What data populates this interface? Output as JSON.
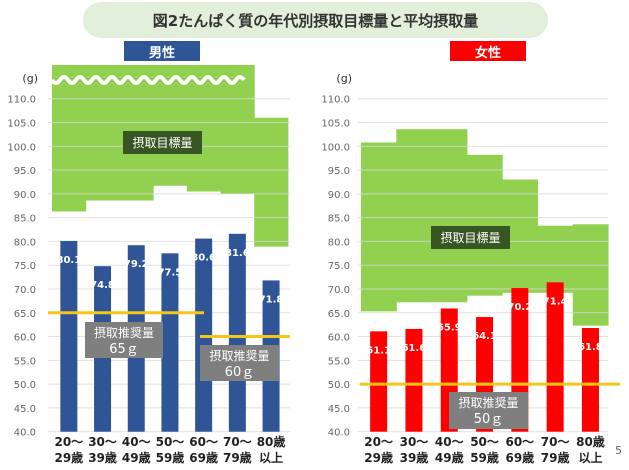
{
  "title": "図2たんぱく質の年代別摂取目標量と平均摂取量",
  "page_number": "5",
  "colors": {
    "male": "#2f5597",
    "female": "#ff0000",
    "target": "#92d050",
    "recommended": "#f5c518",
    "label_box": "#7f7f7f",
    "target_label_box": "#375623"
  },
  "chart_data": [
    {
      "type": "bar",
      "panel": "男性",
      "unit": "(g)",
      "categories": [
        "20〜\n29歳",
        "30〜\n39歳",
        "40〜\n49歳",
        "50〜\n59歳",
        "60〜\n69歳",
        "70〜\n79歳",
        "80歳\n以上"
      ],
      "values": [
        80.1,
        74.8,
        79.2,
        77.5,
        80.6,
        81.6,
        71.8
      ],
      "value_labels": [
        "80.1",
        "74.8",
        "79.2",
        "77.5",
        "80.6",
        "81.6",
        "71.8"
      ],
      "ylim": [
        40,
        110
      ],
      "yticks": [
        "40.0",
        "45.0",
        "50.0",
        "55.0",
        "60.0",
        "65.0",
        "70.0",
        "75.0",
        "80.0",
        "85.0",
        "90.0",
        "95.0",
        "100.0",
        "105.0",
        "110.0"
      ],
      "grid": true,
      "axis_break": true,
      "target_range": {
        "label": "摂取目標量",
        "lower": [
          86.3,
          88.6,
          88.6,
          91.7,
          90.5,
          90.0,
          78.9
        ],
        "upper": [
          null,
          null,
          null,
          null,
          null,
          null,
          106.0
        ]
      },
      "recommended": [
        {
          "label": "摂取推奨量",
          "value_label": "65ｇ",
          "value": 65,
          "categories": [
            "20〜29歳",
            "30〜39歳",
            "40〜49歳",
            "50〜59歳",
            "60〜69歳"
          ]
        },
        {
          "label": "摂取推奨量",
          "value_label": "60ｇ",
          "value": 60,
          "categories": [
            "60〜69歳",
            "70〜79歳",
            "80歳以上"
          ]
        }
      ]
    },
    {
      "type": "bar",
      "panel": "女性",
      "unit": "(g)",
      "categories": [
        "20〜\n29歳",
        "30〜\n39歳",
        "40〜\n49歳",
        "50〜\n59歳",
        "60〜\n69歳",
        "70〜\n79歳",
        "80歳\n以上"
      ],
      "values": [
        61.1,
        61.6,
        65.9,
        64.1,
        70.2,
        71.4,
        61.8
      ],
      "value_labels": [
        "61.1",
        "61.6",
        "65.9",
        "64.1",
        "70.2",
        "71.4",
        "61.8"
      ],
      "ylim": [
        40,
        110
      ],
      "yticks": [
        "40.0",
        "45.0",
        "50.0",
        "55.0",
        "60.0",
        "65.0",
        "70.0",
        "75.0",
        "80.0",
        "85.0",
        "90.0",
        "95.0",
        "100.0",
        "105.0",
        "110.0"
      ],
      "grid": true,
      "target_range": {
        "label": "摂取目標量",
        "lower": [
          65.3,
          67.2,
          67.2,
          68.6,
          69.2,
          69.2,
          62.3
        ],
        "upper": [
          100.8,
          103.6,
          103.6,
          98.2,
          93.0,
          83.3,
          83.6
        ]
      },
      "recommended": [
        {
          "label": "摂取推奨量",
          "value_label": "50ｇ",
          "value": 50,
          "categories": [
            "all"
          ]
        }
      ]
    }
  ]
}
